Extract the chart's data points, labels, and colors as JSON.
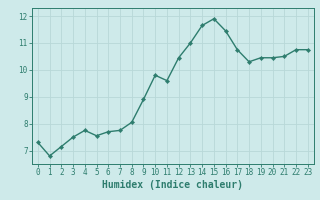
{
  "x": [
    0,
    1,
    2,
    3,
    4,
    5,
    6,
    7,
    8,
    9,
    10,
    11,
    12,
    13,
    14,
    15,
    16,
    17,
    18,
    19,
    20,
    21,
    22,
    23
  ],
  "y": [
    7.3,
    6.8,
    7.15,
    7.5,
    7.75,
    7.55,
    7.7,
    7.75,
    8.05,
    8.9,
    9.8,
    9.6,
    10.45,
    11.0,
    11.65,
    11.9,
    11.45,
    10.75,
    10.3,
    10.45,
    10.45,
    10.5,
    10.75,
    10.75
  ],
  "line_color": "#2e7d6e",
  "marker": "D",
  "marker_size": 2.2,
  "bg_color": "#ceeaea",
  "grid_color": "#b8d8d8",
  "xlabel": "Humidex (Indice chaleur)",
  "xlim": [
    -0.5,
    23.5
  ],
  "ylim": [
    6.5,
    12.3
  ],
  "yticks": [
    7,
    8,
    9,
    10,
    11,
    12
  ],
  "xticks": [
    0,
    1,
    2,
    3,
    4,
    5,
    6,
    7,
    8,
    9,
    10,
    11,
    12,
    13,
    14,
    15,
    16,
    17,
    18,
    19,
    20,
    21,
    22,
    23
  ],
  "tick_fontsize": 5.5,
  "xlabel_fontsize": 7.0,
  "line_width": 1.0
}
